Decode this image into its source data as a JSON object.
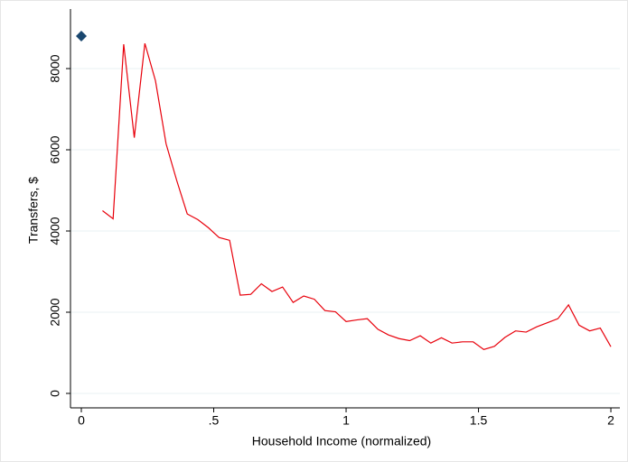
{
  "chart_data": {
    "type": "line",
    "xlabel": "Household Income (normalized)",
    "ylabel": "Transfers, $",
    "xlim": [
      -0.041,
      2.034
    ],
    "ylim": [
      -356,
      9467
    ],
    "xticks": [
      0,
      {
        "value": 0.5,
        "label": ".5"
      },
      1,
      1.5,
      2
    ],
    "yticks": [
      0,
      2000,
      4000,
      6000,
      8000
    ],
    "grid": true,
    "series": [
      {
        "type": "line",
        "color": "#e8000b",
        "x": [
          0.08,
          0.12,
          0.16,
          0.2,
          0.24,
          0.28,
          0.32,
          0.36,
          0.4,
          0.44,
          0.48,
          0.52,
          0.56,
          0.6,
          0.64,
          0.68,
          0.72,
          0.76,
          0.8,
          0.84,
          0.88,
          0.92,
          0.96,
          1.0,
          1.04,
          1.08,
          1.12,
          1.16,
          1.2,
          1.24,
          1.28,
          1.32,
          1.36,
          1.4,
          1.44,
          1.48,
          1.52,
          1.56,
          1.6,
          1.64,
          1.68,
          1.72,
          1.76,
          1.8,
          1.84,
          1.88,
          1.92,
          1.96,
          2.0
        ],
        "values": [
          4500,
          4300,
          8600,
          6300,
          8620,
          7700,
          6150,
          5250,
          4420,
          4280,
          4080,
          3840,
          3770,
          2420,
          2440,
          2700,
          2510,
          2620,
          2240,
          2400,
          2320,
          2040,
          2010,
          1770,
          1810,
          1840,
          1580,
          1440,
          1350,
          1300,
          1420,
          1240,
          1370,
          1240,
          1270,
          1270,
          1080,
          1160,
          1380,
          1540,
          1510,
          1640,
          1740,
          1840,
          2180,
          1680,
          1540,
          1610,
          1150
        ]
      },
      {
        "type": "scatter",
        "marker": "diamond",
        "color": "#1a476f",
        "x": [
          0
        ],
        "values": [
          8800
        ]
      }
    ]
  }
}
